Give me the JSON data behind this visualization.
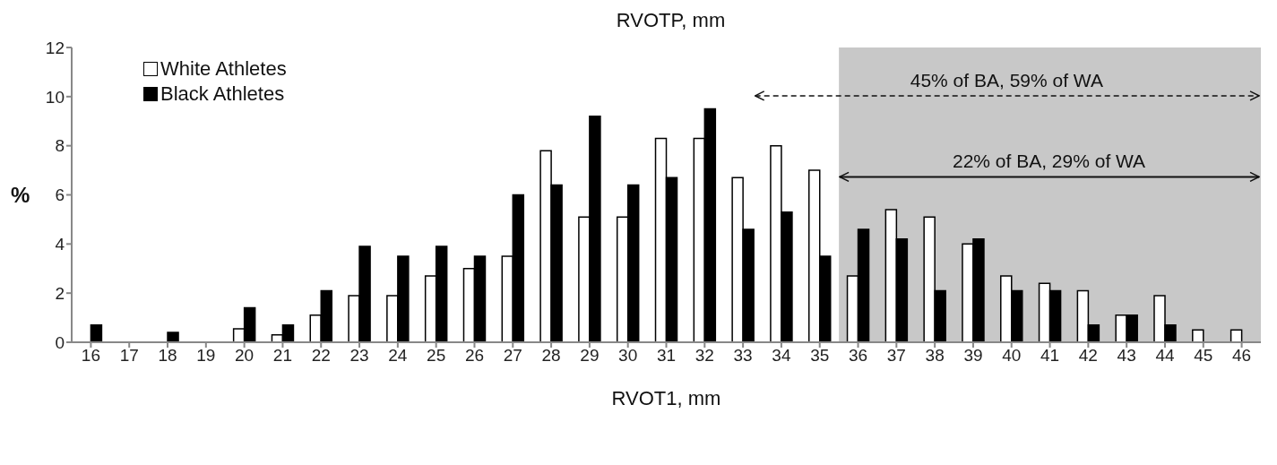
{
  "chart_data": {
    "type": "bar",
    "title": "RVOTP, mm",
    "xlabel": "RVOT1, mm",
    "ylabel": "%",
    "x": [
      16,
      17,
      18,
      19,
      20,
      21,
      22,
      23,
      24,
      25,
      26,
      27,
      28,
      29,
      30,
      31,
      32,
      33,
      34,
      35,
      36,
      37,
      38,
      39,
      40,
      41,
      42,
      43,
      44,
      45,
      46
    ],
    "xlim": [
      15.5,
      46.5
    ],
    "xticks": [
      16,
      17,
      18,
      19,
      20,
      21,
      22,
      23,
      24,
      25,
      26,
      27,
      28,
      29,
      30,
      31,
      32,
      33,
      34,
      35,
      36,
      37,
      38,
      39,
      40,
      41,
      42,
      43,
      44,
      45,
      46
    ],
    "series": [
      {
        "name": "White Athletes",
        "color": "#ffffff",
        "values": [
          0,
          0,
          0,
          0,
          0.55,
          0.3,
          1.1,
          1.9,
          1.9,
          2.7,
          3.0,
          3.5,
          7.8,
          5.1,
          5.1,
          8.3,
          8.3,
          6.7,
          8.0,
          7.0,
          2.7,
          5.4,
          5.1,
          4.0,
          2.7,
          2.4,
          2.1,
          1.1,
          1.9,
          0.5,
          0.5
        ]
      },
      {
        "name": "Black Athletes",
        "color": "#000000",
        "values": [
          0.7,
          0,
          0.4,
          0,
          1.4,
          0.7,
          2.1,
          3.9,
          3.5,
          3.9,
          3.5,
          6.0,
          6.4,
          9.2,
          6.4,
          6.7,
          9.5,
          4.6,
          5.3,
          3.5,
          4.6,
          4.2,
          2.1,
          4.2,
          2.1,
          2.1,
          0.7,
          1.1,
          0.7,
          0,
          0
        ]
      }
    ],
    "ylim": [
      0,
      12
    ],
    "yticks": [
      0,
      2,
      4,
      6,
      8,
      10,
      12
    ],
    "grid": false,
    "legend": "top left",
    "bands": [
      {
        "axis": "x",
        "from": 35.5,
        "to": 46.5,
        "color": "#c8c8c8"
      }
    ],
    "annotations": [
      "45% of BA, 59% of WA",
      "22% of BA, 29% of WA"
    ]
  }
}
